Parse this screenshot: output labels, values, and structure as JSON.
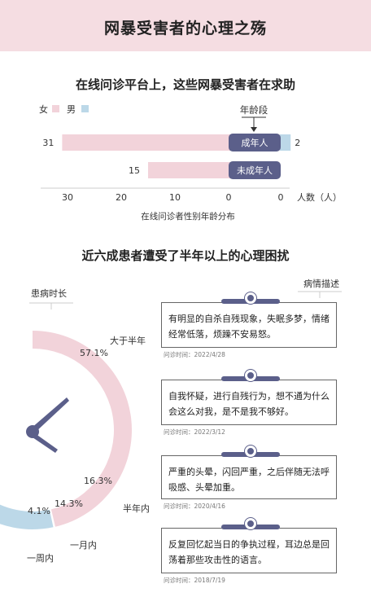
{
  "header": {
    "title": "网暴受害者的心理之殇"
  },
  "section1": {
    "title": "在线问诊平台上，这些网暴受害者在求助",
    "legend_female": "女",
    "legend_male": "男",
    "age_label": "年龄段",
    "axis_unit": "人数（人）",
    "caption": "在线问诊者性别年龄分布",
    "colors": {
      "female": "#f2d3da",
      "male": "#bcd8e8",
      "age_pill": "#5b5f8a"
    }
  },
  "section2": {
    "title": "近六成患者遭受了半年以上的心理困扰",
    "duration_label": "患病时长",
    "desc_label": "病情描述",
    "colors": {
      "more_half_year": "#f2d3da",
      "half_year": "#bcd8e8",
      "one_month": "#9a8fae",
      "one_week": "#5b5f8a"
    }
  },
  "chart_data": [
    {
      "type": "bar",
      "categories": [
        "成年人",
        "未成年人"
      ],
      "series": [
        {
          "name": "女",
          "values": [
            31,
            15
          ]
        },
        {
          "name": "男",
          "values": [
            2,
            0
          ]
        }
      ],
      "xticks": [
        "30",
        "20",
        "10",
        "0",
        "0"
      ],
      "xlabel": "人数（人）",
      "caption": "在线问诊者性别年龄分布"
    },
    {
      "type": "pie",
      "title": "近六成患者遭受了半年以上的心理困扰",
      "slices": [
        {
          "label": "大于半年",
          "value": 57.1,
          "value_label": "57.1%"
        },
        {
          "label": "半年内",
          "value": 16.3,
          "value_label": "16.3%"
        },
        {
          "label": "一月内",
          "value": 14.3,
          "value_label": "14.3%"
        },
        {
          "label": "一周内",
          "value": 4.1,
          "value_label": "4.1%"
        }
      ]
    }
  ],
  "cases": [
    {
      "text": "有明显的自杀自残现象，失眠多梦，情绪经常低落，烦躁不安易怒。",
      "date": "问诊时间：2022/4/28"
    },
    {
      "text": "自我怀疑，进行自残行为，想不通为什么会这么对我，是不是我不够好。",
      "date": "问诊时间：2022/3/12"
    },
    {
      "text": "严重的头晕，闪回严重，之后伴随无法呼吸感、头晕加重。",
      "date": "问诊时间：2020/4/16"
    },
    {
      "text": "反复回忆起当日的争执过程，耳边总是回荡着那些攻击性的语言。",
      "date": "问诊时间：2018/7/19"
    }
  ]
}
